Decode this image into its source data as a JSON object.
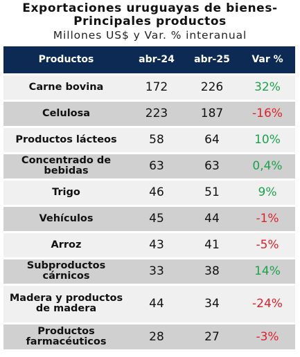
{
  "chart_data": {
    "type": "table",
    "title": "Exportaciones uruguayas de bienes-Principales productos",
    "subtitle": "Millones US$ y Var. % interanual",
    "columns": [
      "Productos",
      "abr-24",
      "abr-25",
      "Var %"
    ],
    "rows": [
      {
        "product": "Carne bovina",
        "abr24": "172",
        "abr25": "226",
        "var": "32%",
        "sign": "pos"
      },
      {
        "product": "Celulosa",
        "abr24": "223",
        "abr25": "187",
        "var": "-16%",
        "sign": "neg"
      },
      {
        "product": "Productos lácteos",
        "abr24": "58",
        "abr25": "64",
        "var": "10%",
        "sign": "pos"
      },
      {
        "product": "Concentrado de bebidas",
        "abr24": "63",
        "abr25": "63",
        "var": "0,4%",
        "sign": "pos"
      },
      {
        "product": "Trigo",
        "abr24": "46",
        "abr25": "51",
        "var": "9%",
        "sign": "pos"
      },
      {
        "product": "Vehículos",
        "abr24": "45",
        "abr25": "44",
        "var": "-1%",
        "sign": "neg"
      },
      {
        "product": "Arroz",
        "abr24": "43",
        "abr25": "41",
        "var": "-5%",
        "sign": "neg"
      },
      {
        "product": "Subproductos cárnicos",
        "abr24": "33",
        "abr25": "38",
        "var": "14%",
        "sign": "pos"
      },
      {
        "product": "Madera y productos de madera",
        "abr24": "44",
        "abr25": "34",
        "var": "-24%",
        "sign": "neg"
      },
      {
        "product": "Productos farmacéuticos",
        "abr24": "28",
        "abr25": "27",
        "var": "-3%",
        "sign": "neg"
      }
    ],
    "colors": {
      "header_bg": "#0d2a55",
      "positive": "#1aa34a",
      "negative": "#e0202a",
      "row_light": "#f0f0f0",
      "row_dark": "#d0d0d0"
    }
  }
}
